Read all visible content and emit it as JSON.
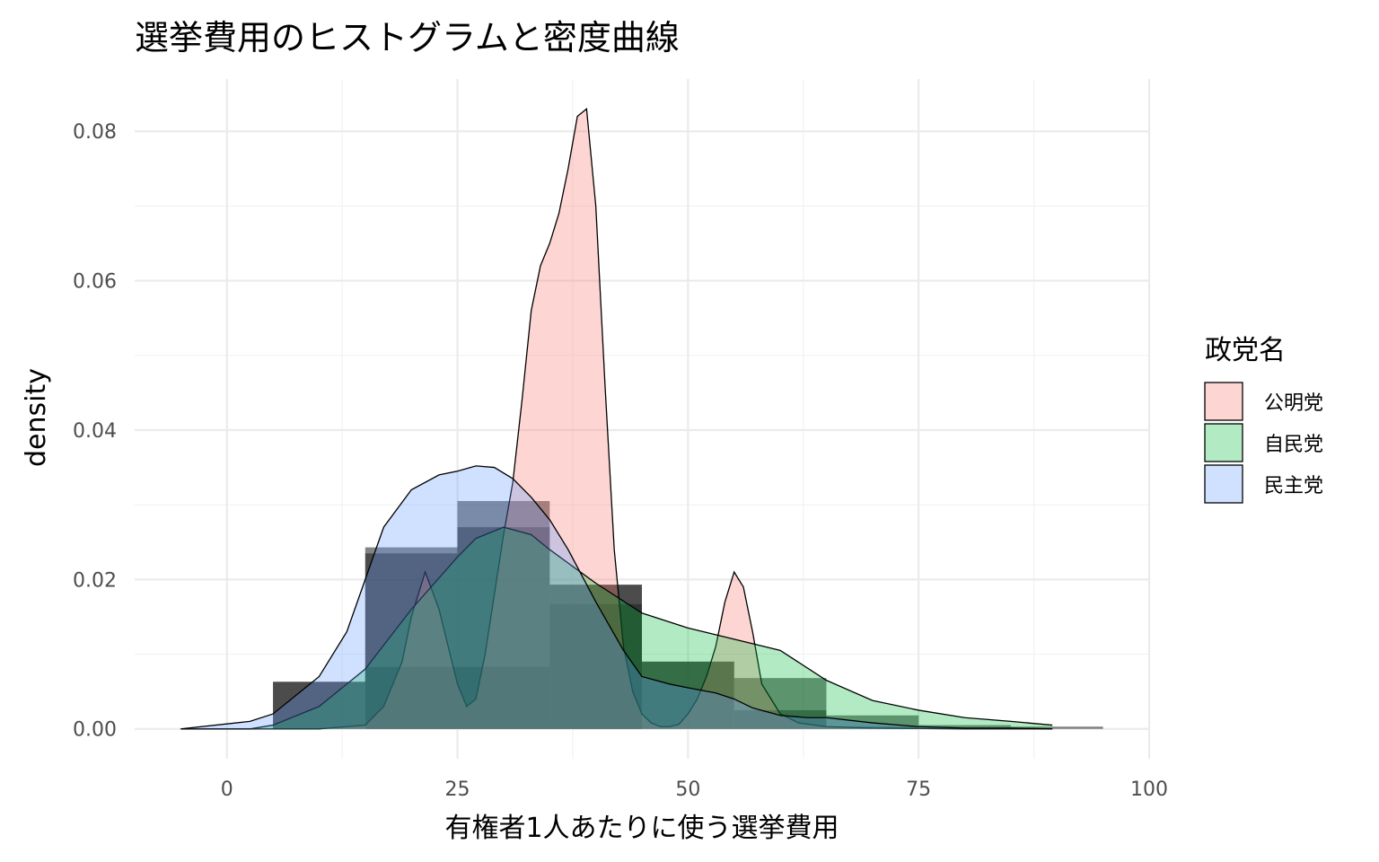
{
  "chart_data": {
    "type": "area",
    "title": "選挙費用のヒストグラムと密度曲線",
    "xlabel": "有権者1人あたりに使う選挙費用",
    "ylabel": "density",
    "xlim": [
      -10,
      100
    ],
    "ylim": [
      -0.004,
      0.087
    ],
    "x_ticks": [
      0,
      25,
      50,
      75,
      100
    ],
    "x_tick_labels": [
      "0",
      "25",
      "50",
      "75",
      "100"
    ],
    "y_ticks": [
      0.0,
      0.02,
      0.04,
      0.06,
      0.08
    ],
    "y_tick_labels": [
      "0.00",
      "0.02",
      "0.04",
      "0.06",
      "0.08"
    ],
    "grid": true,
    "legend": {
      "title": "政党名",
      "position": "right",
      "entries": [
        "公明党",
        "自民党",
        "民主党"
      ]
    },
    "colors": {
      "公明党": "#F8766D",
      "自民党": "#00BA38",
      "民主党": "#619CFF"
    },
    "histogram": {
      "bin_width": 10,
      "series": [
        {
          "name": "公明党",
          "bins": [
            [
              15,
              25,
              0.0083
            ],
            [
              25,
              35,
              0.0083
            ],
            [
              35,
              45,
              0.0167
            ]
          ]
        },
        {
          "name": "自民党",
          "bins": [
            [
              5,
              15,
              0.0063
            ],
            [
              15,
              25,
              0.0235
            ],
            [
              25,
              35,
              0.027
            ],
            [
              35,
              45,
              0.0193
            ],
            [
              45,
              55,
              0.009
            ],
            [
              55,
              65,
              0.0068
            ],
            [
              65,
              75,
              0.0018
            ],
            [
              75,
              85,
              0.0005
            ],
            [
              85,
              95,
              0.0003
            ]
          ]
        },
        {
          "name": "民主党",
          "bins": [
            [
              5,
              15,
              0.0063
            ],
            [
              15,
              25,
              0.0243
            ],
            [
              25,
              35,
              0.0305
            ],
            [
              35,
              45,
              0.0193
            ],
            [
              45,
              55,
              0.009
            ],
            [
              55,
              65,
              0.0025
            ],
            [
              65,
              75,
              0.0003
            ]
          ]
        }
      ]
    },
    "density": {
      "series": [
        {
          "name": "公明党",
          "x": [
            -5,
            10,
            15,
            17,
            19,
            20,
            21.5,
            23,
            24,
            25,
            26,
            27,
            28,
            29,
            30,
            31,
            32,
            33,
            34,
            35,
            36,
            37,
            38,
            39,
            40,
            41,
            42,
            43,
            44,
            45,
            46,
            47,
            48,
            49,
            50,
            51,
            52,
            53,
            54,
            55,
            56,
            57,
            58,
            60,
            62,
            65,
            70,
            80,
            89.5
          ],
          "y": [
            0,
            0,
            0.0005,
            0.003,
            0.009,
            0.015,
            0.021,
            0.016,
            0.011,
            0.006,
            0.003,
            0.004,
            0.01,
            0.018,
            0.026,
            0.033,
            0.044,
            0.056,
            0.062,
            0.065,
            0.069,
            0.075,
            0.082,
            0.083,
            0.07,
            0.046,
            0.024,
            0.011,
            0.005,
            0.002,
            0.0008,
            0.0003,
            0.0003,
            0.0006,
            0.002,
            0.004,
            0.007,
            0.011,
            0.017,
            0.021,
            0.019,
            0.013,
            0.006,
            0.002,
            0.0008,
            0.0003,
            0.0001,
            0,
            0
          ]
        },
        {
          "name": "自民党",
          "x": [
            -5,
            2.5,
            5,
            10,
            15,
            20,
            25,
            27,
            30,
            33,
            35,
            40,
            45,
            50,
            55,
            60,
            65,
            70,
            75,
            80,
            85,
            89.5
          ],
          "y": [
            0,
            0,
            0.0005,
            0.003,
            0.008,
            0.016,
            0.023,
            0.0255,
            0.027,
            0.026,
            0.024,
            0.0195,
            0.0155,
            0.0135,
            0.012,
            0.0105,
            0.0065,
            0.0038,
            0.0025,
            0.0015,
            0.001,
            0.0005
          ]
        },
        {
          "name": "民主党",
          "x": [
            -5,
            2.5,
            5,
            10,
            13,
            15,
            17,
            20,
            23,
            25,
            27,
            29,
            31,
            33,
            35,
            37,
            40,
            43,
            45,
            48,
            50,
            53,
            55,
            57,
            60,
            63,
            65,
            70,
            75,
            80,
            85,
            89.5
          ],
          "y": [
            0,
            0.001,
            0.002,
            0.007,
            0.013,
            0.02,
            0.027,
            0.032,
            0.034,
            0.0345,
            0.0352,
            0.035,
            0.0335,
            0.031,
            0.028,
            0.024,
            0.017,
            0.0105,
            0.007,
            0.006,
            0.0055,
            0.0048,
            0.004,
            0.0028,
            0.0018,
            0.0015,
            0.0015,
            0.0008,
            0.0003,
            0.0001,
            0.0001,
            0
          ]
        }
      ]
    }
  }
}
